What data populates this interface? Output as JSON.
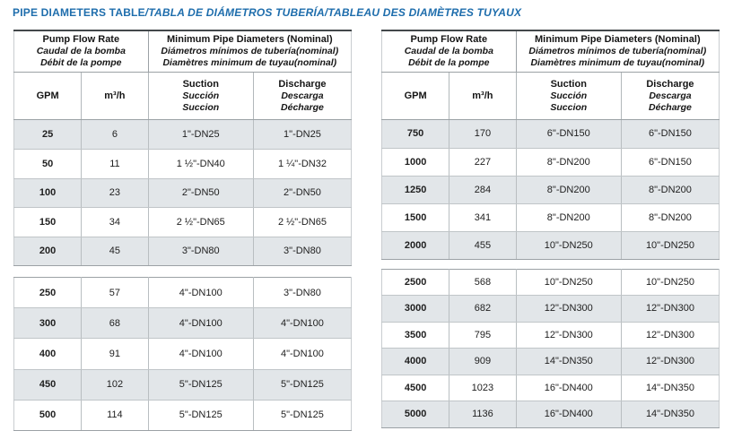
{
  "title": {
    "main": "PIPE DIAMETERS TABLE",
    "rest": "/TABLA DE DIÁMETROS TUBERÍA/TABLEAU DES DIAMÈTRES TUYAUX"
  },
  "header": {
    "flow_group": {
      "en": "Pump Flow Rate",
      "es": "Caudal de la bomba",
      "fr": "Débit de la pompe"
    },
    "diameter_group": {
      "en": "Minimum Pipe Diameters (Nominal)",
      "es": "Diámetros mínimos de tubería(nominal)",
      "fr": "Diamètres minimum de tuyau(nominal)"
    },
    "columns": {
      "gpm": "GPM",
      "m3h": "m³/h",
      "suction": {
        "en": "Suction",
        "es": "Succión",
        "fr": "Succion"
      },
      "discharge": {
        "en": "Discharge",
        "es": "Descarga",
        "fr": "Décharge"
      }
    }
  },
  "tables": [
    {
      "id": "left",
      "sections": [
        {
          "rows": [
            [
              "25",
              "6",
              "1\"-DN25",
              "1\"-DN25"
            ],
            [
              "50",
              "11",
              "1 ½\"-DN40",
              "1 ¼\"-DN32"
            ],
            [
              "100",
              "23",
              "2\"-DN50",
              "2\"-DN50"
            ],
            [
              "150",
              "34",
              "2 ½\"-DN65",
              "2 ½\"-DN65"
            ],
            [
              "200",
              "45",
              "3\"-DN80",
              "3\"-DN80"
            ]
          ]
        },
        {
          "rows": [
            [
              "250",
              "57",
              "4\"-DN100",
              "3\"-DN80"
            ],
            [
              "300",
              "68",
              "4\"-DN100",
              "4\"-DN100"
            ],
            [
              "400",
              "91",
              "4\"-DN100",
              "4\"-DN100"
            ],
            [
              "450",
              "102",
              "5\"-DN125",
              "5\"-DN125"
            ],
            [
              "500",
              "114",
              "5\"-DN125",
              "5\"-DN125"
            ]
          ]
        }
      ]
    },
    {
      "id": "right",
      "sections": [
        {
          "rows": [
            [
              "750",
              "170",
              "6\"-DN150",
              "6\"-DN150"
            ],
            [
              "1000",
              "227",
              "8\"-DN200",
              "6\"-DN150"
            ],
            [
              "1250",
              "284",
              "8\"-DN200",
              "8\"-DN200"
            ],
            [
              "1500",
              "341",
              "8\"-DN200",
              "8\"-DN200"
            ],
            [
              "2000",
              "455",
              "10\"-DN250",
              "10\"-DN250"
            ]
          ]
        },
        {
          "rows": [
            [
              "2500",
              "568",
              "10\"-DN250",
              "10\"-DN250"
            ],
            [
              "3000",
              "682",
              "12\"-DN300",
              "12\"-DN300"
            ],
            [
              "3500",
              "795",
              "12\"-DN300",
              "12\"-DN300"
            ],
            [
              "4000",
              "909",
              "14\"-DN350",
              "12\"-DN300"
            ],
            [
              "4500",
              "1023",
              "16\"-DN400",
              "14\"-DN350"
            ],
            [
              "5000",
              "1136",
              "16\"-DN400",
              "14\"-DN350"
            ]
          ]
        }
      ]
    }
  ]
}
